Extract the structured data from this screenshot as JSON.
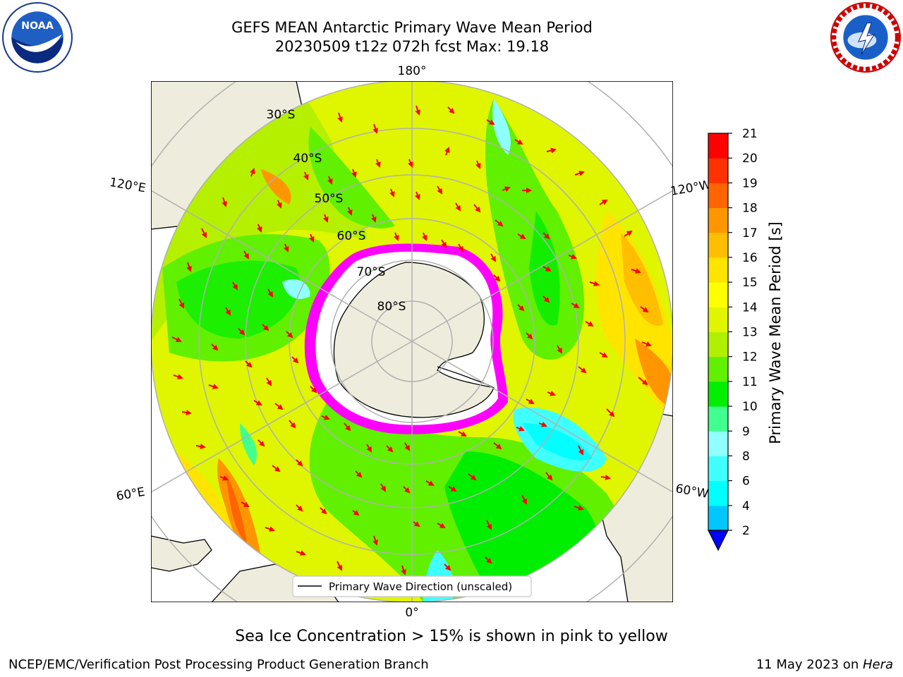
{
  "title_line1": "GEFS MEAN Antarctic Primary Wave Mean Period",
  "title_line2": "20230509 t12z 072h fcst   Max: 19.18",
  "map": {
    "projection": "south-polar-stereographic",
    "longitude_labels": {
      "top": "180°",
      "left_upper": "120°E",
      "right_upper": "120°W",
      "left_lower": "60°E",
      "right_lower": "60°W",
      "bottom": "0°"
    },
    "latitude_labels": [
      "30°S",
      "40°S",
      "50°S",
      "60°S",
      "70°S",
      "80°S"
    ],
    "legend_label": "Primary Wave Direction (unscaled)",
    "arrow_color": "#ff0000",
    "ice_color": "#ff00ff"
  },
  "colorbar": {
    "label": "Primary Wave Mean Period [s]",
    "ticks": [
      "2",
      "4",
      "6",
      "8",
      "9",
      "10",
      "11",
      "12",
      "13",
      "14",
      "15",
      "16",
      "17",
      "18",
      "19",
      "20",
      "21"
    ],
    "colors": [
      "#0050ff",
      "#00c8ff",
      "#00ffff",
      "#40ffff",
      "#90ffff",
      "#40ff90",
      "#00ee00",
      "#60f000",
      "#b0f000",
      "#e0f500",
      "#ffff00",
      "#ffe400",
      "#ffbe00",
      "#ff9600",
      "#ff6400",
      "#ff3200",
      "#ff0000"
    ],
    "under_color": "#0000ff"
  },
  "ice_caption": "Sea Ice Concentration > 15% is shown in pink to yellow",
  "footer_left": "NCEP/EMC/Verification Post Processing Product Generation Branch",
  "footer_date": "11 May 2023 on ",
  "footer_machine": "Hera"
}
